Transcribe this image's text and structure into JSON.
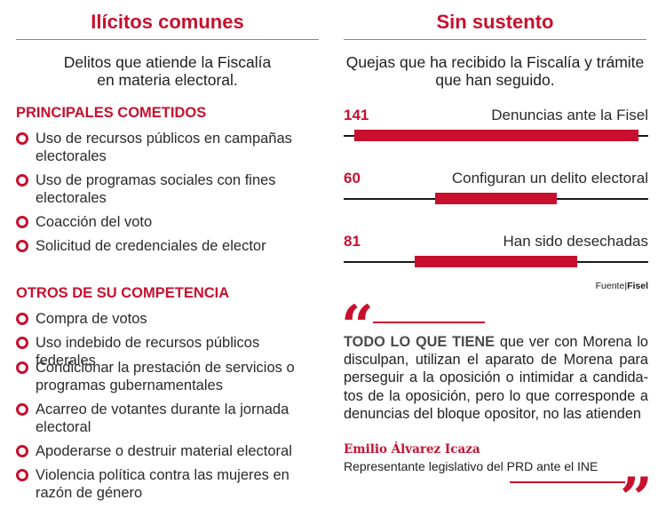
{
  "left": {
    "title": "Ilícitos comunes",
    "intro_line1": "Delitos que atiende la Fiscalía",
    "intro_line2": "en materia electoral.",
    "section1_title": "PRINCIPALES COMETIDOS",
    "section1_items": [
      [
        "Uso de recursos públicos en campañas",
        "electorales"
      ],
      [
        "Uso de programas sociales con fines",
        "electorales"
      ],
      [
        "Coacción del voto"
      ],
      [
        "Solicitud de credenciales de elector"
      ]
    ],
    "section2_title": "OTROS DE SU COMPETENCIA",
    "section2_items": [
      [
        "Compra de votos"
      ],
      [
        "Uso indebido de recursos públicos federales"
      ],
      [
        "Condicionar la prestación de servicios o",
        "programas gubernamentales"
      ],
      [
        "Acarreo de votantes durante la jornada",
        "electoral"
      ],
      [
        "Apoderarse o destruir material electoral"
      ],
      [
        "Violencia política contra las mujeres en",
        "razón de género"
      ]
    ]
  },
  "right": {
    "title": "Sin sustento",
    "intro_line1": "Quejas que ha recibido la Fiscalía y trámite",
    "intro_line2": "que han seguido.",
    "source_prefix": "Fuente",
    "source_name": "Fisel",
    "quote_lead": "TODO LO QUE TIENE",
    "quote_body": " que ver con Morena lo disculpan, utilizan el aparato de Morena para perseguir a la oposición o intimidar a candida-tos de la oposición, pero lo que corresponde a denuncias del bloque opositor, no las atienden",
    "quote_author": "Emilio Álvarez Icaza",
    "quote_role": "Representante legislativo del PRD ante el INE",
    "open_quote_mark": "“",
    "close_quote_mark": "”"
  },
  "chart_data": {
    "type": "bar",
    "orientation": "horizontal",
    "title": "Sin sustento",
    "categories": [
      "Denuncias ante la Fisel",
      "Configuran un delito electoral",
      "Han sido desechadas"
    ],
    "values": [
      141,
      60,
      81
    ],
    "value_labels": [
      "141",
      "60",
      "81"
    ],
    "xlim": [
      0,
      141
    ],
    "bar_alignment": "center",
    "grid": false,
    "colors": {
      "bar": "#c8102e",
      "axis": "#1a1a1a",
      "accent": "#c8102e"
    }
  }
}
